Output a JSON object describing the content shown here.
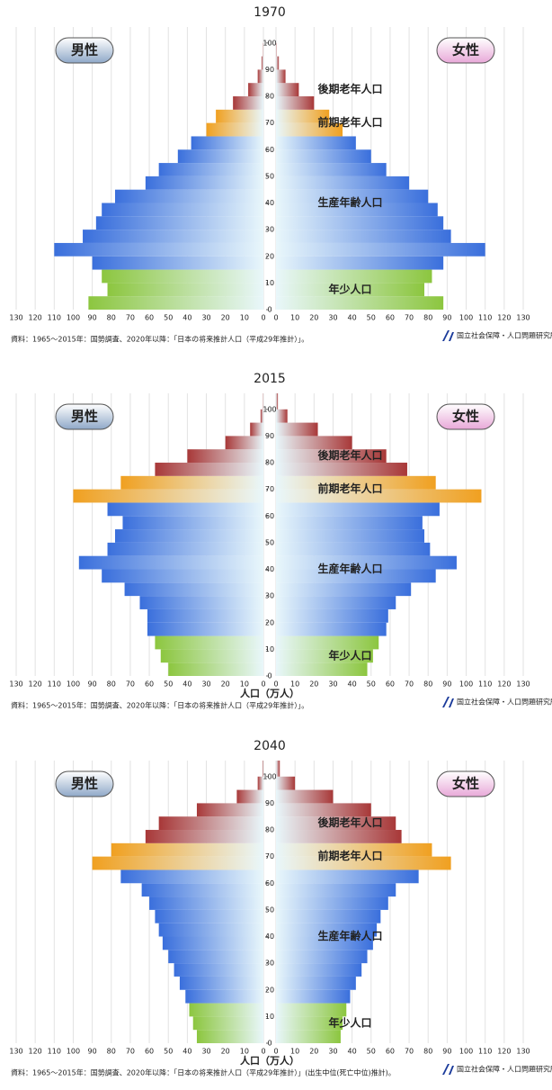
{
  "chart_data": [
    {
      "type": "pyramid",
      "title": "1970",
      "ages": [
        0,
        5,
        10,
        15,
        20,
        25,
        30,
        35,
        40,
        45,
        50,
        55,
        60,
        65,
        70,
        75,
        80,
        85,
        90,
        95,
        100
      ],
      "series": [
        {
          "name": "男性",
          "color": "#8fa8c8",
          "values": [
            92,
            82,
            85,
            90,
            110,
            95,
            88,
            85,
            78,
            62,
            55,
            45,
            38,
            30,
            25,
            16,
            8,
            3,
            1,
            0.2,
            0
          ]
        },
        {
          "name": "女性",
          "color": "#e8a8d8",
          "values": [
            88,
            78,
            82,
            88,
            110,
            92,
            88,
            85,
            80,
            70,
            58,
            50,
            42,
            35,
            28,
            20,
            12,
            5,
            1.5,
            0.3,
            0
          ]
        }
      ],
      "age_groups": [
        {
          "label": "年少人口",
          "from": 0,
          "to": 15,
          "color": "#8cc63f"
        },
        {
          "label": "生産年齢人口",
          "from": 15,
          "to": 65,
          "color": "#3a6fdc"
        },
        {
          "label": "前期老年人口",
          "from": 65,
          "to": 75,
          "color": "#f0a020"
        },
        {
          "label": "後期老年人口",
          "from": 75,
          "to": 106,
          "color": "#a83838"
        }
      ],
      "xlim": [
        0,
        130
      ],
      "xticks": [
        0,
        10,
        20,
        30,
        40,
        50,
        60,
        70,
        80,
        90,
        100,
        110,
        120,
        130
      ],
      "ylim": [
        0,
        106
      ],
      "yticks": [
        0,
        10,
        20,
        30,
        40,
        50,
        60,
        70,
        80,
        90,
        100
      ],
      "source": "資料：1965～2015年：国勢調査、2020年以降：「日本の将来推計人口（平成29年推計）」。",
      "credit": "国立社会保障・人口問題研究所"
    },
    {
      "type": "pyramid",
      "title": "2015",
      "ages": [
        0,
        5,
        10,
        15,
        20,
        25,
        30,
        35,
        40,
        45,
        50,
        55,
        60,
        65,
        70,
        75,
        80,
        85,
        90,
        95,
        100
      ],
      "series": [
        {
          "name": "男性",
          "color": "#8fa8c8",
          "values": [
            50,
            54,
            57,
            61,
            61,
            65,
            73,
            85,
            97,
            82,
            78,
            74,
            82,
            100,
            75,
            57,
            40,
            20,
            7,
            1.5,
            0.2
          ]
        },
        {
          "name": "女性",
          "color": "#e8a8d8",
          "values": [
            48,
            51,
            54,
            58,
            59,
            63,
            71,
            84,
            95,
            81,
            78,
            77,
            86,
            108,
            84,
            69,
            58,
            40,
            22,
            6,
            1
          ]
        }
      ],
      "age_groups": [
        {
          "label": "年少人口",
          "from": 0,
          "to": 15,
          "color": "#8cc63f"
        },
        {
          "label": "生産年齢人口",
          "from": 15,
          "to": 65,
          "color": "#3a6fdc"
        },
        {
          "label": "前期老年人口",
          "from": 65,
          "to": 75,
          "color": "#f0a020"
        },
        {
          "label": "後期老年人口",
          "from": 75,
          "to": 106,
          "color": "#a83838"
        }
      ],
      "xlim": [
        0,
        130
      ],
      "xticks": [
        0,
        10,
        20,
        30,
        40,
        50,
        60,
        70,
        80,
        90,
        100,
        110,
        120,
        130
      ],
      "ylim": [
        0,
        106
      ],
      "yticks": [
        0,
        10,
        20,
        30,
        40,
        50,
        60,
        70,
        80,
        90,
        100
      ],
      "x_label": "人口（万人）",
      "source": "資料：1965～2015年：国勢調査、2020年以降：「日本の将来推計人口（平成29年推計）」。",
      "credit": "国立社会保障・人口問題研究所"
    },
    {
      "type": "pyramid",
      "title": "2040",
      "ages": [
        0,
        5,
        10,
        15,
        20,
        25,
        30,
        35,
        40,
        45,
        50,
        55,
        60,
        65,
        70,
        75,
        80,
        85,
        90,
        95,
        100
      ],
      "series": [
        {
          "name": "男性",
          "color": "#8fa8c8",
          "values": [
            35,
            37,
            39,
            41,
            44,
            47,
            50,
            53,
            55,
            57,
            60,
            64,
            75,
            90,
            80,
            62,
            55,
            35,
            14,
            3,
            0.5
          ]
        },
        {
          "name": "女性",
          "color": "#e8a8d8",
          "values": [
            34,
            35,
            37,
            39,
            42,
            45,
            48,
            51,
            53,
            55,
            59,
            63,
            75,
            92,
            82,
            66,
            63,
            50,
            30,
            10,
            2
          ]
        }
      ],
      "age_groups": [
        {
          "label": "年少人口",
          "from": 0,
          "to": 15,
          "color": "#8cc63f"
        },
        {
          "label": "生産年齢人口",
          "from": 15,
          "to": 65,
          "color": "#3a6fdc"
        },
        {
          "label": "前期老年人口",
          "from": 65,
          "to": 75,
          "color": "#f0a020"
        },
        {
          "label": "後期老年人口",
          "from": 75,
          "to": 106,
          "color": "#a83838"
        }
      ],
      "xlim": [
        0,
        130
      ],
      "xticks": [
        0,
        10,
        20,
        30,
        40,
        50,
        60,
        70,
        80,
        90,
        100,
        110,
        120,
        130
      ],
      "ylim": [
        0,
        106
      ],
      "yticks": [
        0,
        10,
        20,
        30,
        40,
        50,
        60,
        70,
        80,
        90,
        100
      ],
      "x_label": "人口（万人）",
      "source": "資料：1965～2015年：国勢調査、2020年以降：「日本の将来推計人口（平成29年推計）」(出生中位(死亡中位)推計)。",
      "credit": "国立社会保障・人口問題研究所"
    }
  ]
}
